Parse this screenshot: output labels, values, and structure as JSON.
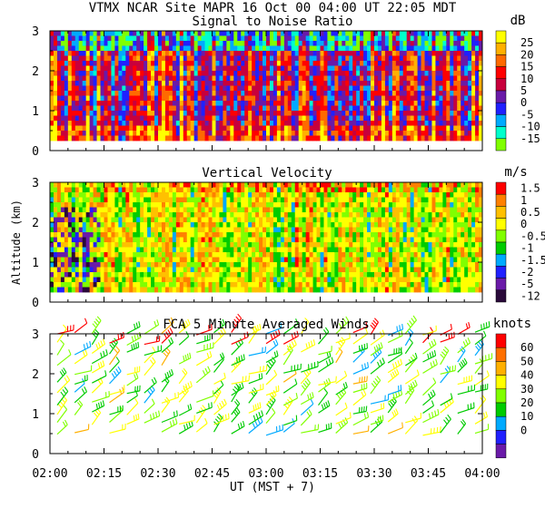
{
  "header": "VTMX  NCAR Site  MAPR 16 Oct 00  04:00 UT  22:05  MDT",
  "xlabel": "UT  (MST + 7)",
  "ylabel": "Altitude (km)",
  "x_ticks": [
    "02:00",
    "02:15",
    "02:30",
    "02:45",
    "03:00",
    "03:15",
    "03:30",
    "03:45",
    "04:00"
  ],
  "y_ticks": [
    "0",
    "1",
    "2",
    "3"
  ],
  "chart_data": [
    {
      "type": "heatmap",
      "title": "Signal to Noise Ratio",
      "unit": "dB",
      "xlim": [
        "02:00",
        "04:00"
      ],
      "ylim": [
        0,
        3
      ],
      "data_altitude_range_km": [
        0.25,
        3.0
      ],
      "colorbar": {
        "labels": [
          "25",
          "20",
          "15",
          "10",
          "5",
          "0",
          "-5",
          "-10",
          "-15"
        ],
        "colors": [
          "#ffff00",
          "#ffb000",
          "#ff6a00",
          "#ff0000",
          "#c8003c",
          "#6a1aa8",
          "#2020ff",
          "#00aaff",
          "#00ffcc",
          "#80ff00"
        ]
      },
      "dominant_values": "alternating vertical bands of 10-20 dB (red/orange) and 0-10 dB (purple/blue), with -5 to -15 dB patches near 2.5-3 km"
    },
    {
      "type": "heatmap",
      "title": "Vertical Velocity",
      "unit": "m/s",
      "xlim": [
        "02:00",
        "04:00"
      ],
      "ylim": [
        0,
        3
      ],
      "data_altitude_range_km": [
        0.25,
        3.0
      ],
      "colorbar": {
        "labels": [
          "1.5",
          "1",
          "0.5",
          "0",
          "-0.5",
          "-1",
          "-1.5",
          "-2",
          "-5",
          "-12"
        ],
        "colors": [
          "#ff0000",
          "#ff8000",
          "#ffc000",
          "#ffff00",
          "#80ff00",
          "#00cc00",
          "#00aaff",
          "#2020ff",
          "#6a1aa8",
          "#2a0a3a"
        ]
      },
      "dominant_values": "mostly -0.5 to 0.5 m/s (green/yellow), strong downdrafts (-5 to -12 m/s) near 02:00-02:15 below 2.5 km"
    },
    {
      "type": "barbs",
      "title": "FCA 5 Minute Averaged Winds",
      "unit": "knots",
      "xlim": [
        "02:00",
        "04:00"
      ],
      "ylim": [
        0,
        3
      ],
      "colorbar": {
        "labels": [
          "60",
          "50",
          "40",
          "30",
          "20",
          "10",
          "0"
        ],
        "colors": [
          "#ff0000",
          "#ff7000",
          "#ffb000",
          "#ffff00",
          "#80ff00",
          "#00cc00",
          "#00aaff",
          "#2020ff",
          "#6a1aa8"
        ]
      },
      "profiles_per_hour": 12,
      "levels_km": [
        0.5,
        0.75,
        1.0,
        1.25,
        1.5,
        1.75,
        2.0,
        2.25,
        2.5,
        2.75,
        3.0
      ],
      "dominant_values": "mostly 20-40 knots (green/yellow), 50-60 knots (red) near 3 km"
    }
  ]
}
